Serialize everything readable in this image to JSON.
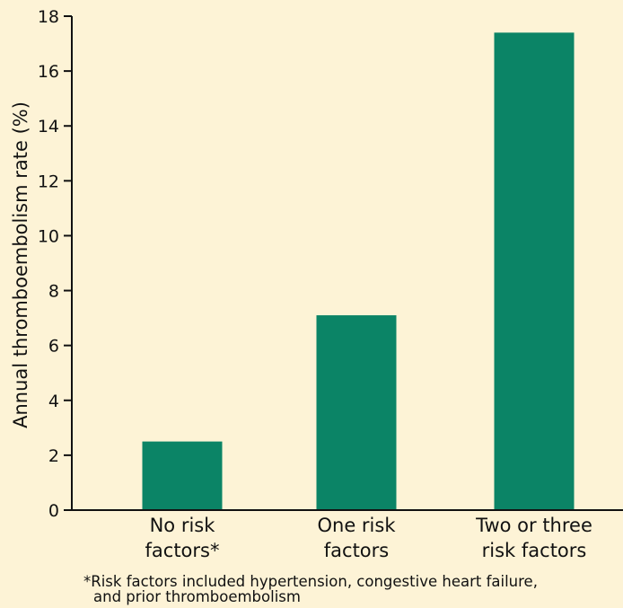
{
  "chart_data": {
    "type": "bar",
    "categories": [
      [
        "No risk",
        "factors*"
      ],
      [
        "One risk",
        "factors"
      ],
      [
        "Two or three",
        "risk factors"
      ]
    ],
    "values": [
      2.5,
      7.1,
      17.4
    ],
    "ylabel": "Annual thromboembolism rate (%)",
    "xlabel": "",
    "ylim": [
      0,
      18
    ],
    "yticks": [
      0,
      2,
      4,
      6,
      8,
      10,
      12,
      14,
      16,
      18
    ],
    "grid": false,
    "bar_color": "#0b8466",
    "background": "#fdf3d6",
    "footnote": [
      "*Risk factors included hypertension, congestive heart failure,",
      "and prior thromboembolism"
    ]
  }
}
